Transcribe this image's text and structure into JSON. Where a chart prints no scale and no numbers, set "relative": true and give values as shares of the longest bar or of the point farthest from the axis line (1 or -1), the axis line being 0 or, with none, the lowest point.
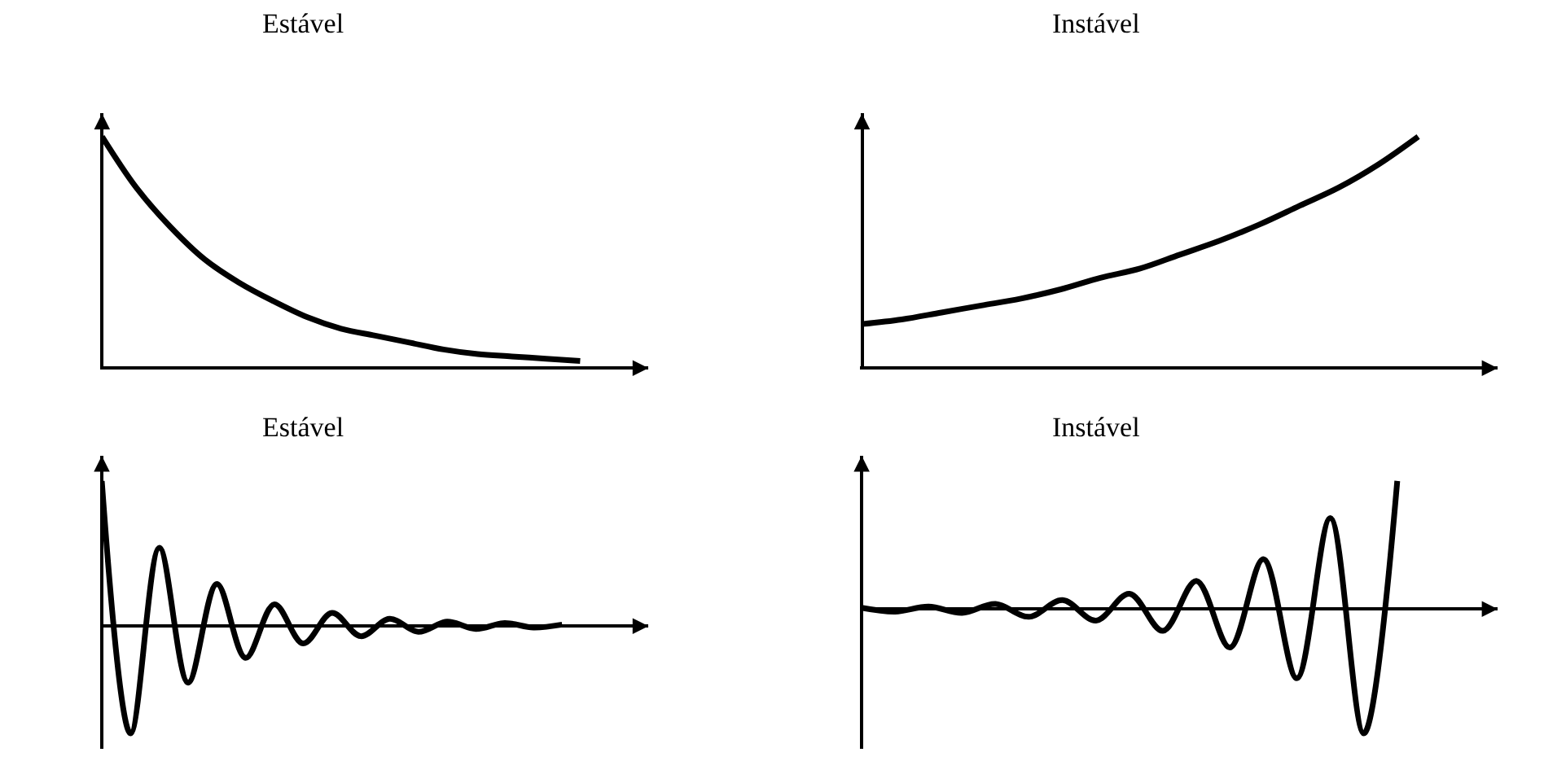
{
  "chart_data": [
    {
      "type": "line",
      "title": "Estável",
      "relative": true,
      "categories": [
        null,
        null,
        null,
        null,
        null,
        null,
        null,
        null,
        null,
        null,
        null,
        null,
        null,
        null,
        null,
        null,
        null
      ],
      "series": [
        {
          "color": "#000000",
          "values": [
            1,
            0.78,
            0.61,
            0.47,
            0.37,
            0.29,
            0.22,
            0.17,
            0.14,
            0.11,
            0.08,
            0.06,
            0.05,
            0.04,
            0.03,
            null,
            null
          ]
        }
      ]
    },
    {
      "type": "line",
      "title": "Instável",
      "relative": true,
      "categories": [
        null,
        null,
        null,
        null,
        null,
        null,
        null,
        null,
        null,
        null,
        null,
        null,
        null,
        null,
        null,
        null,
        null
      ],
      "series": [
        {
          "color": "#000000",
          "values": [
            0.19,
            0.21,
            0.24,
            0.27,
            0.3,
            0.34,
            0.39,
            0.43,
            0.49,
            0.55,
            0.62,
            0.7,
            0.78,
            0.88,
            1,
            null,
            null
          ]
        }
      ]
    },
    {
      "type": "line",
      "title": "Estável",
      "relative": true,
      "categories": [
        null,
        null,
        null,
        null,
        null,
        null,
        null,
        null,
        null,
        null,
        null,
        null,
        null,
        null,
        null,
        null,
        null,
        null,
        null,
        null
      ],
      "series": [
        {
          "color": "#000000",
          "values": [
            1,
            -0.74,
            0.54,
            -0.39,
            0.29,
            -0.22,
            0.15,
            -0.12,
            0.09,
            -0.07,
            0.05,
            -0.04,
            0.03,
            -0.02,
            0.02,
            -0.01,
            0.01,
            null,
            null,
            null
          ]
        }
      ]
    },
    {
      "type": "line",
      "title": "Instável",
      "relative": true,
      "categories": [
        null,
        null,
        null,
        null,
        null,
        null,
        null,
        null,
        null,
        null,
        null,
        null,
        null,
        null,
        null,
        null,
        null,
        null,
        null,
        null
      ],
      "series": [
        {
          "color": "#000000",
          "values": [
            0.01,
            -0.02,
            0.02,
            -0.03,
            0.04,
            -0.06,
            0.07,
            -0.09,
            0.12,
            -0.17,
            0.22,
            -0.3,
            0.39,
            -0.54,
            0.71,
            -0.97,
            1,
            null,
            null,
            null
          ]
        }
      ]
    }
  ]
}
